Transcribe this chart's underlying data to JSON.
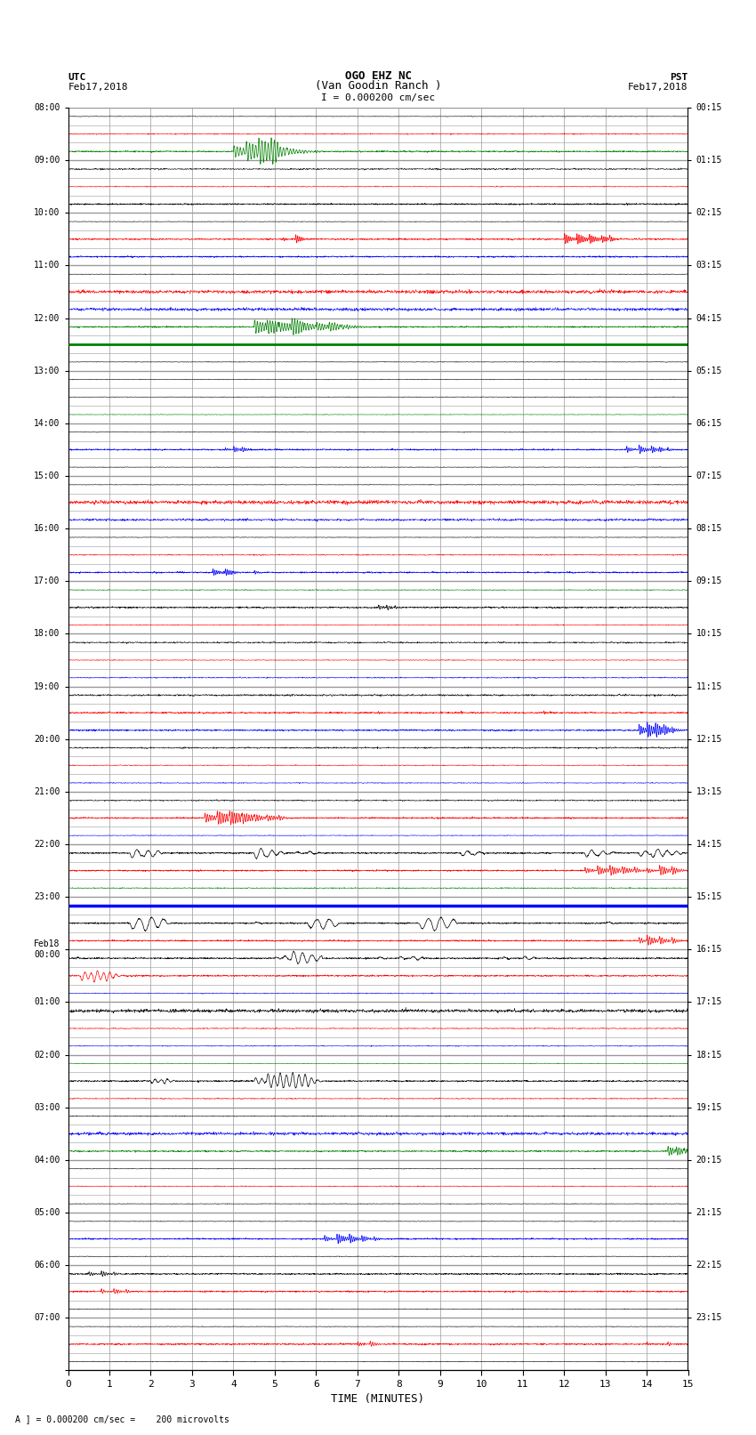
{
  "title_line1": "OGO EHZ NC",
  "title_line2": "(Van Goodin Ranch )",
  "title_line3": "I = 0.000200 cm/sec",
  "left_header_line1": "UTC",
  "left_header_line2": "Feb17,2018",
  "right_header_line1": "PST",
  "right_header_line2": "Feb17,2018",
  "xlabel": "TIME (MINUTES)",
  "footer": "A ] = 0.000200 cm/sec =    200 microvolts",
  "utc_labels": [
    "08:00",
    "09:00",
    "10:00",
    "11:00",
    "12:00",
    "13:00",
    "14:00",
    "15:00",
    "16:00",
    "17:00",
    "18:00",
    "19:00",
    "20:00",
    "21:00",
    "22:00",
    "23:00",
    "Feb18\n00:00",
    "01:00",
    "02:00",
    "03:00",
    "04:00",
    "05:00",
    "06:00",
    "07:00"
  ],
  "pst_labels": [
    "00:15",
    "01:15",
    "02:15",
    "03:15",
    "04:15",
    "05:15",
    "06:15",
    "07:15",
    "08:15",
    "09:15",
    "10:15",
    "11:15",
    "12:15",
    "13:15",
    "14:15",
    "15:15",
    "16:15",
    "17:15",
    "18:15",
    "19:15",
    "20:15",
    "21:15",
    "22:15",
    "23:15"
  ],
  "n_rows": 72,
  "n_hours": 24,
  "rows_per_hour": 3,
  "x_min": 0,
  "x_max": 15,
  "background_color": "#ffffff",
  "grid_color": "#999999"
}
